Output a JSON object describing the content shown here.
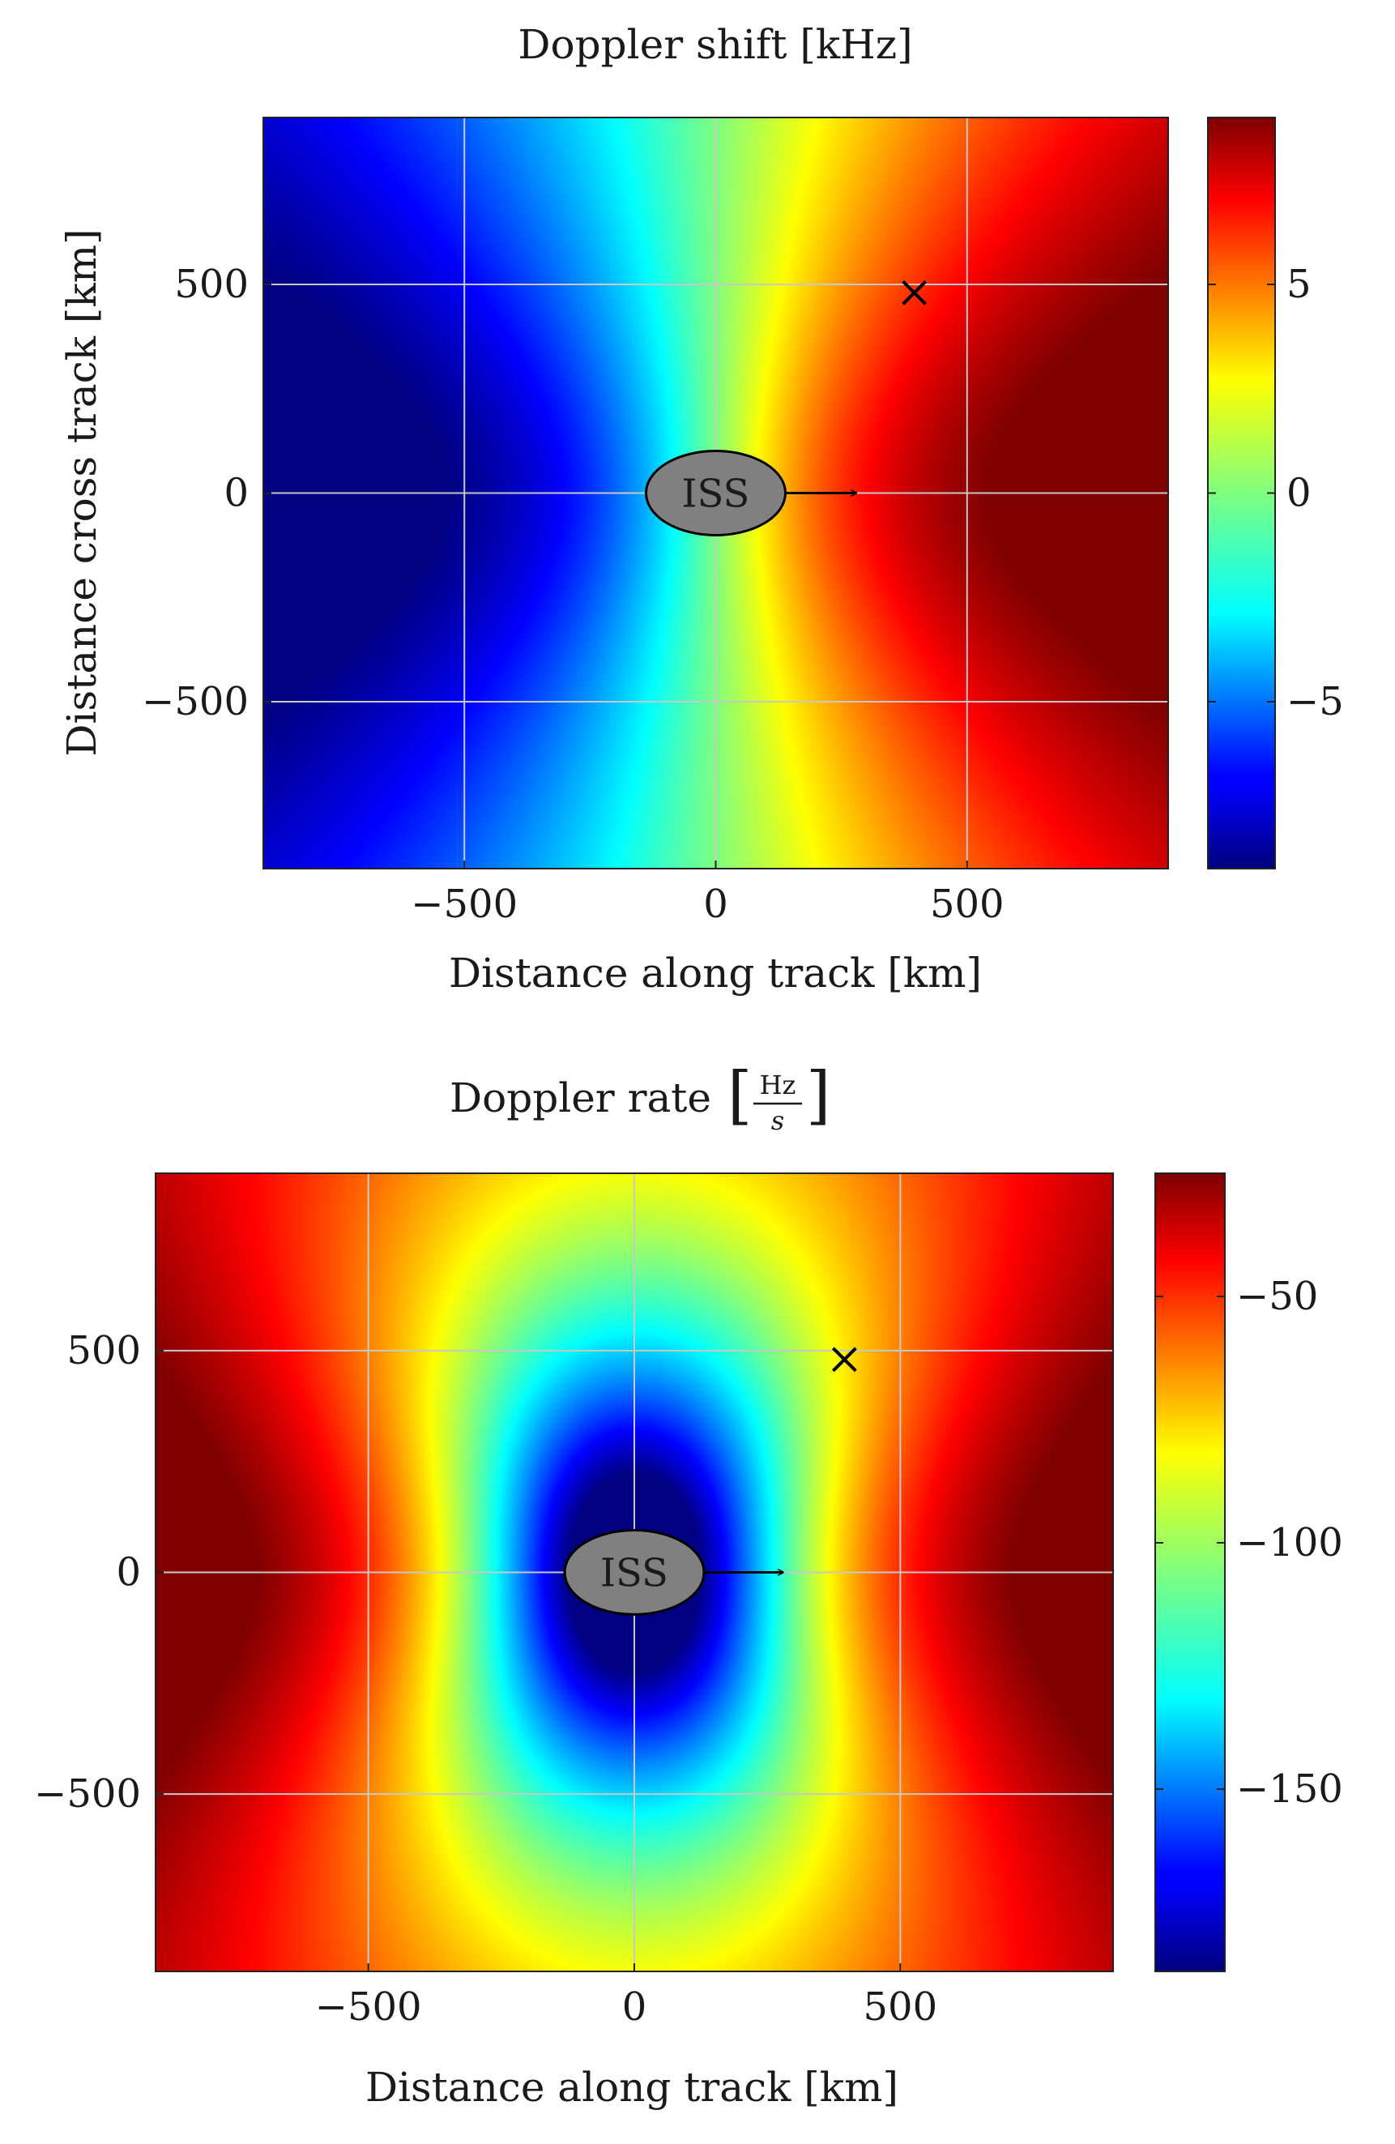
{
  "chart_data": [
    {
      "type": "heatmap",
      "title": "Doppler shift [kHz]",
      "xlabel": "Distance along track [km]",
      "ylabel": "Distance cross track [km]",
      "xlim": [
        -900,
        900
      ],
      "ylim": [
        -900,
        900
      ],
      "xticks": [
        -500,
        0,
        500
      ],
      "yticks": [
        -500,
        0,
        500
      ],
      "xtick_labels": [
        "−500",
        "0",
        "500"
      ],
      "ytick_labels": [
        "−500",
        "0",
        "500"
      ],
      "grid": true,
      "colorbar": {
        "range": [
          -9,
          9
        ],
        "ticks": [
          -5,
          0,
          5
        ],
        "tick_labels": [
          "−5",
          "0",
          "5"
        ],
        "colormap": "jet"
      },
      "annotations": [
        {
          "kind": "ellipse",
          "label": "ISS",
          "x": 0,
          "y": 0,
          "arrow": "along-track",
          "arrow_to_x": 280
        },
        {
          "kind": "marker",
          "symbol": "×",
          "x": 395,
          "y": 480
        }
      ]
    },
    {
      "type": "heatmap",
      "title": "Doppler rate",
      "title_unit_numerator": "Hz",
      "title_unit_denominator": "s",
      "xlabel": "Distance along track [km]",
      "ylabel": "",
      "xlim": [
        -900,
        900
      ],
      "ylim": [
        -900,
        900
      ],
      "xticks": [
        -500,
        0,
        500
      ],
      "yticks": [
        -500,
        0,
        500
      ],
      "xtick_labels": [
        "−500",
        "0",
        "500"
      ],
      "ytick_labels": [
        "−500",
        "0",
        "500"
      ],
      "grid": true,
      "colorbar": {
        "range": [
          -187,
          -25
        ],
        "ticks": [
          -50,
          -100,
          -150
        ],
        "tick_labels": [
          "−50",
          "−100",
          "−150"
        ],
        "colormap": "jet"
      },
      "annotations": [
        {
          "kind": "ellipse",
          "label": "ISS",
          "x": 0,
          "y": 0,
          "arrow": "along-track",
          "arrow_to_x": 280
        },
        {
          "kind": "marker",
          "symbol": "×",
          "x": 395,
          "y": 480
        }
      ]
    }
  ]
}
